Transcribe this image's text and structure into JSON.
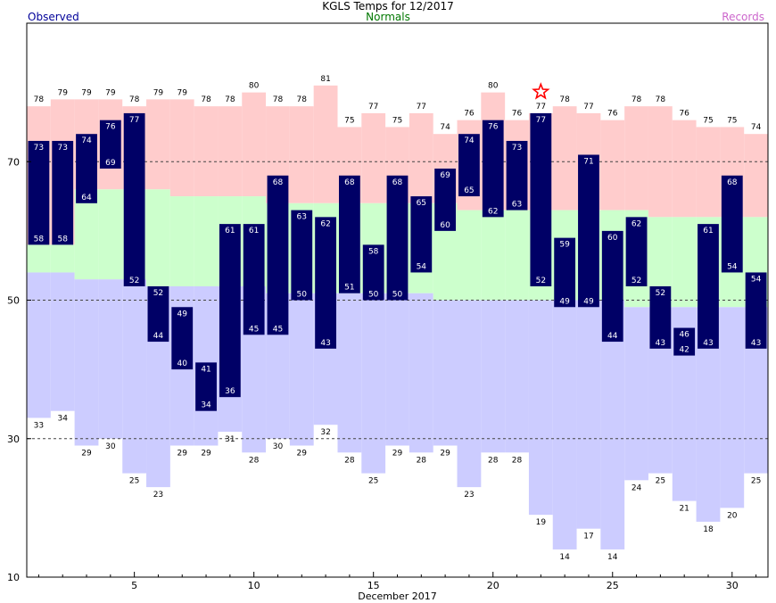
{
  "header": {
    "title": "KGLS Temps for 12/2017",
    "observed_label": "Observed",
    "normals_label": "Normals",
    "records_label": "Records"
  },
  "colors": {
    "observed": "#000066",
    "record_high_band": "#ffcccc",
    "normal_band": "#ccffcc",
    "record_low_band": "#ccccff",
    "normals_text": "#007700",
    "records_text": "#cc66cc",
    "header_observed_text": "#000099",
    "star": "#ff0000"
  },
  "chart_data": {
    "type": "bar",
    "title": "KGLS Temps for 12/2017",
    "xlabel": "December 2017",
    "ylabel": "",
    "xlim": [
      0.5,
      31.5
    ],
    "ylim": [
      10,
      90
    ],
    "grid": true,
    "gridlines": [
      30,
      50,
      70
    ],
    "x_ticks": [
      5,
      10,
      15,
      20,
      25,
      30
    ],
    "y_ticks": [
      10,
      30,
      50,
      70
    ],
    "legend": [
      "Observed",
      "Normals",
      "Records"
    ],
    "days": [
      1,
      2,
      3,
      4,
      5,
      6,
      7,
      8,
      9,
      10,
      11,
      12,
      13,
      14,
      15,
      16,
      17,
      18,
      19,
      20,
      21,
      22,
      23,
      24,
      25,
      26,
      27,
      28,
      29,
      30,
      31
    ],
    "series": [
      {
        "name": "Observed High",
        "values": [
          73,
          73,
          74,
          76,
          77,
          52,
          49,
          41,
          61,
          61,
          68,
          63,
          62,
          68,
          58,
          68,
          65,
          69,
          74,
          76,
          73,
          77,
          59,
          71,
          60,
          62,
          52,
          46,
          61,
          68,
          54
        ]
      },
      {
        "name": "Observed Low",
        "values": [
          58,
          58,
          64,
          69,
          52,
          44,
          40,
          34,
          36,
          45,
          45,
          50,
          43,
          51,
          50,
          50,
          54,
          60,
          65,
          62,
          63,
          52,
          49,
          49,
          44,
          52,
          43,
          42,
          43,
          54,
          43
        ]
      },
      {
        "name": "Normal High",
        "values": [
          58,
          58,
          66,
          66,
          66,
          66,
          65,
          65,
          65,
          65,
          64,
          64,
          64,
          64,
          64,
          64,
          64,
          64,
          63,
          63,
          63,
          63,
          63,
          63,
          63,
          63,
          62,
          62,
          62,
          62,
          62
        ]
      },
      {
        "name": "Normal Low",
        "values": [
          54,
          54,
          53,
          53,
          53,
          52,
          52,
          52,
          52,
          52,
          51,
          51,
          51,
          51,
          51,
          51,
          51,
          50,
          50,
          50,
          50,
          50,
          50,
          50,
          50,
          49,
          49,
          49,
          49,
          49,
          49
        ]
      },
      {
        "name": "Record High",
        "values": [
          78,
          79,
          79,
          79,
          78,
          79,
          79,
          78,
          78,
          80,
          78,
          78,
          81,
          75,
          77,
          75,
          77,
          74,
          76,
          80,
          76,
          77,
          78,
          77,
          76,
          78,
          78,
          76,
          75,
          75,
          74
        ]
      },
      {
        "name": "Record Low",
        "values": [
          33,
          34,
          29,
          30,
          25,
          23,
          29,
          29,
          31,
          28,
          30,
          29,
          32,
          28,
          25,
          29,
          28,
          29,
          23,
          28,
          28,
          19,
          14,
          17,
          14,
          24,
          25,
          21,
          18,
          20,
          25
        ]
      }
    ],
    "new_record_days": [
      22
    ]
  }
}
